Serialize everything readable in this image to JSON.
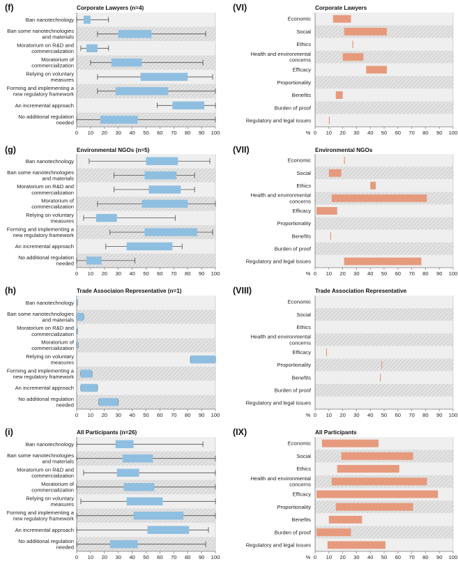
{
  "chart_data": [
    {
      "id": "f",
      "label": "(f)",
      "title": "Corporate Lawyers (n=4)",
      "type": "boxplot",
      "xlim": [
        0,
        100
      ],
      "xticks": [
        0,
        10,
        20,
        30,
        40,
        50,
        60,
        70,
        80,
        90,
        100
      ],
      "categories": [
        "Ban nanotechnology",
        "Ban some nanotechnologies and materials",
        "Moratorium on R&D and commercialization",
        "Moratorium of commercialization",
        "Relying on voluntary measures",
        "Forming and implementing a new regulatory framework",
        "An incremental approach",
        "No additional regulation needed"
      ],
      "boxes": [
        {
          "min": 0,
          "q1": 5,
          "q3": 10,
          "max": 23
        },
        {
          "min": 15,
          "q1": 30,
          "q3": 54,
          "max": 93
        },
        {
          "min": 3,
          "q1": 7,
          "q3": 15,
          "max": 23
        },
        {
          "min": 10,
          "q1": 25,
          "q3": 47,
          "max": 91
        },
        {
          "min": 15,
          "q1": 46,
          "q3": 80,
          "max": 98
        },
        {
          "min": 15,
          "q1": 28,
          "q3": 66,
          "max": 100
        },
        {
          "min": 58,
          "q1": 69,
          "q3": 92,
          "max": 100
        },
        {
          "min": 0,
          "q1": 17,
          "q3": 44,
          "max": 100
        }
      ]
    },
    {
      "id": "VI",
      "label": "(VI)",
      "title": "Corporate Lawyers",
      "type": "bar-range",
      "xlim": [
        0,
        100
      ],
      "xticks": [
        0,
        10,
        20,
        30,
        40,
        50,
        60,
        70,
        80,
        90,
        100
      ],
      "unit_label": "%",
      "categories": [
        "Economic",
        "Social",
        "Ethics",
        "Health and environmental concerns",
        "Efficacy",
        "Proportionality",
        "Benefits",
        "Burden of proof",
        "Regulatory and legal issues"
      ],
      "ranges": [
        [
          13,
          26
        ],
        [
          21,
          52
        ],
        [
          27,
          27
        ],
        [
          20,
          35
        ],
        [
          37,
          52
        ],
        null,
        [
          15,
          20
        ],
        null,
        [
          10,
          10
        ]
      ]
    },
    {
      "id": "g",
      "label": "(g)",
      "title": "Environmental NGOs (n=5)",
      "type": "boxplot",
      "xlim": [
        0,
        100
      ],
      "xticks": [
        0,
        10,
        20,
        30,
        40,
        50,
        60,
        70,
        80,
        90,
        100
      ],
      "categories": [
        "Ban nanotechnology",
        "Ban some nanotechnologies and materials",
        "Moratorium on R&D and commercialization",
        "Moratorium of commercialization",
        "Relying on voluntary measures",
        "Forming and implementing a new regulatory framework",
        "An incremental approach",
        "No additional regulation needed"
      ],
      "boxes": [
        {
          "min": 9,
          "q1": 50,
          "q3": 73,
          "max": 96
        },
        {
          "min": 27,
          "q1": 49,
          "q3": 72,
          "max": 85
        },
        {
          "min": 27,
          "q1": 52,
          "q3": 75,
          "max": 85
        },
        {
          "min": 15,
          "q1": 47,
          "q3": 80,
          "max": 100
        },
        {
          "min": 5,
          "q1": 14,
          "q3": 29,
          "max": 71
        },
        {
          "min": 24,
          "q1": 49,
          "q3": 87,
          "max": 98
        },
        {
          "min": 21,
          "q1": 36,
          "q3": 69,
          "max": 76
        },
        {
          "min": 0,
          "q1": 7,
          "q3": 18,
          "max": 42
        }
      ]
    },
    {
      "id": "VII",
      "label": "(VII)",
      "title": "Environmental NGOs",
      "type": "bar-range",
      "xlim": [
        0,
        100
      ],
      "xticks": [
        0,
        10,
        20,
        30,
        40,
        50,
        60,
        70,
        80,
        90,
        100
      ],
      "unit_label": "%",
      "categories": [
        "Economic",
        "Social",
        "Ethics",
        "Health and environmental concerns",
        "Efficacy",
        "Proportionality",
        "Benefits",
        "Burden of proof",
        "Regulatory and legal issues"
      ],
      "ranges": [
        [
          21,
          21
        ],
        [
          10,
          19
        ],
        [
          40,
          44
        ],
        [
          12,
          81
        ],
        [
          1,
          16
        ],
        null,
        [
          11,
          11
        ],
        null,
        [
          21,
          77
        ]
      ]
    },
    {
      "id": "h",
      "label": "(h)",
      "title": "Trade Associaion Representative (n=1)",
      "type": "boxplot",
      "xlim": [
        0,
        100
      ],
      "xticks": [
        0,
        10,
        20,
        30,
        40,
        50,
        60,
        70,
        80,
        90,
        100
      ],
      "categories": [
        "Ban nanotechnology",
        "Ban some nanotechnologies and materials",
        "Moratorium on R&D and commercialization",
        "Moratorium of commercialization",
        "Relying on voluntary measures",
        "Forming and implementing a new regulatory framework",
        "An incremental approach",
        "No additional regulation needed"
      ],
      "boxes": [
        {
          "min": 0,
          "q1": 0,
          "q3": 0.6,
          "max": 0.6
        },
        {
          "min": 0,
          "q1": 0,
          "q3": 5,
          "max": 5
        },
        {
          "min": 0,
          "q1": 0,
          "q3": 0.6,
          "max": 0.6
        },
        {
          "min": 0,
          "q1": 0,
          "q3": 1,
          "max": 1
        },
        {
          "min": 82,
          "q1": 82,
          "q3": 100,
          "max": 100
        },
        {
          "min": 3,
          "q1": 3,
          "q3": 11,
          "max": 11
        },
        {
          "min": 3,
          "q1": 3,
          "q3": 15,
          "max": 15
        },
        {
          "min": 16,
          "q1": 16,
          "q3": 30,
          "max": 30
        }
      ]
    },
    {
      "id": "VIII",
      "label": "(VIII)",
      "title": "Trade Association Representative",
      "type": "bar-range",
      "xlim": [
        0,
        100
      ],
      "xticks": [
        0,
        10,
        20,
        30,
        40,
        50,
        60,
        70,
        80,
        90,
        100
      ],
      "unit_label": "%",
      "categories": [
        "Economic",
        "Social",
        "Ethics",
        "Health and environmental concerns",
        "Efficacy",
        "Proportionality",
        "Benefits",
        "Burden of proof",
        "Regulatory and legal issues"
      ],
      "ranges": [
        null,
        null,
        null,
        null,
        [
          8,
          8
        ],
        [
          48,
          48
        ],
        [
          47,
          47
        ],
        null,
        null
      ]
    },
    {
      "id": "i",
      "label": "(i)",
      "title": "All Participants (n=26)",
      "type": "boxplot",
      "xlim": [
        0,
        100
      ],
      "xticks": [
        0,
        10,
        20,
        30,
        40,
        50,
        60,
        70,
        80,
        90,
        100
      ],
      "categories": [
        "Ban nanotechnology",
        "Ban some nanotechnologies and materials",
        "Moratorium on R&D and commercialization",
        "Moratorium of commercialization",
        "Relying on voluntary measures",
        "Forming and implementing a new regulatory framework",
        "An incremental approach",
        "No additional regulation needed"
      ],
      "boxes": [
        {
          "min": 0,
          "q1": 28,
          "q3": 41,
          "max": 91
        },
        {
          "min": 0,
          "q1": 33,
          "q3": 55,
          "max": 100
        },
        {
          "min": 5,
          "q1": 29,
          "q3": 45,
          "max": 100
        },
        {
          "min": 0,
          "q1": 34,
          "q3": 56,
          "max": 100
        },
        {
          "min": 3,
          "q1": 36,
          "q3": 62,
          "max": 100
        },
        {
          "min": 0,
          "q1": 41,
          "q3": 77,
          "max": 100
        },
        {
          "min": 0,
          "q1": 51,
          "q3": 81,
          "max": 95
        },
        {
          "min": 0,
          "q1": 24,
          "q3": 44,
          "max": 93
        }
      ]
    },
    {
      "id": "IX",
      "label": "(IX)",
      "title": "All Participants",
      "type": "bar-range",
      "xlim": [
        0,
        100
      ],
      "xticks": [
        0,
        10,
        20,
        30,
        40,
        50,
        60,
        70,
        80,
        90,
        100
      ],
      "unit_label": "%",
      "categories": [
        "Economic",
        "Social",
        "Ethics",
        "Health and environmental concerns",
        "Efficacy",
        "Proportionality",
        "Benefits",
        "Burden of proof",
        "Regulatory and legal issues"
      ],
      "ranges": [
        [
          5,
          46
        ],
        [
          19,
          71
        ],
        [
          16,
          61
        ],
        [
          12,
          81
        ],
        [
          1,
          89
        ],
        [
          15,
          71
        ],
        [
          10,
          34
        ],
        [
          1,
          26
        ],
        [
          9,
          51
        ]
      ]
    }
  ],
  "colors": {
    "box_fill": "#8fbfe0",
    "bar_fill": "#e79a7c",
    "band_light": "#efefef",
    "band_hatch": "#d6d6d6",
    "axis": "#777777",
    "whisker": "#333333"
  }
}
